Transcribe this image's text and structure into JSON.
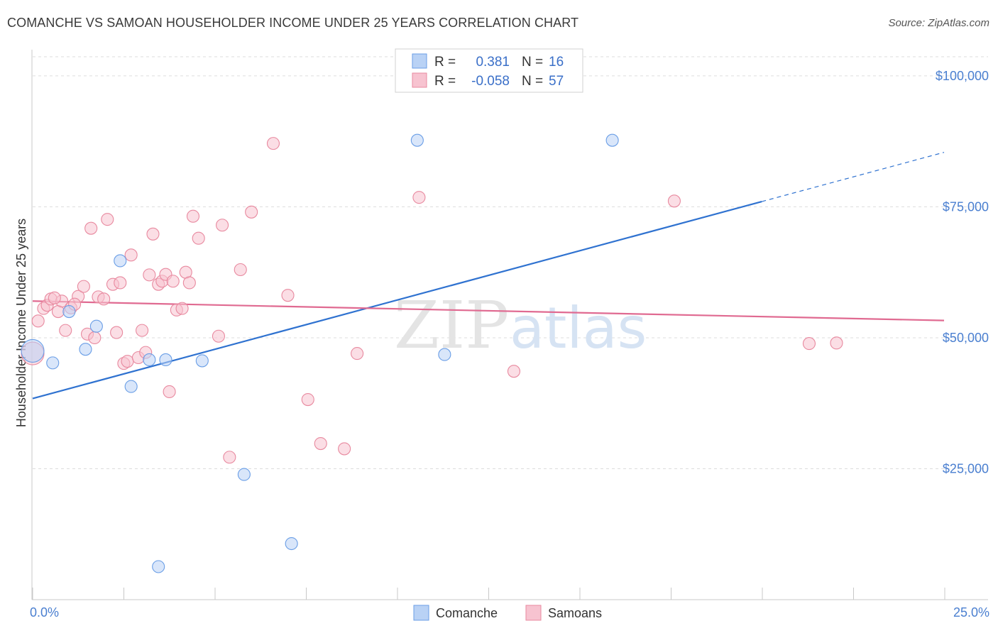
{
  "title": "COMANCHE VS SAMOAN HOUSEHOLDER INCOME UNDER 25 YEARS CORRELATION CHART",
  "source": "Source: ZipAtlas.com",
  "chart_data": {
    "type": "scatter",
    "xlabel": "",
    "ylabel": "Householder Income Under 25 years",
    "xlim": [
      0,
      25
    ],
    "ylim": [
      0,
      105000
    ],
    "x_tick_labels": [
      "0.0%",
      "25.0%"
    ],
    "y_ticks": [
      25000,
      50000,
      75000,
      100000
    ],
    "y_tick_labels": [
      "$25,000",
      "$50,000",
      "$75,000",
      "$100,000"
    ],
    "legend_stats": [
      {
        "r_label": "R =",
        "r_value": "0.381",
        "n_label": "N =",
        "n_value": "16"
      },
      {
        "r_label": "R =",
        "r_value": "-0.058",
        "n_label": "N =",
        "n_value": "57"
      }
    ],
    "series": [
      {
        "name": "Comanche",
        "color": "#6a9ee6",
        "fill": "#b9d2f5",
        "points": [
          {
            "x": 0.0,
            "y": 47500
          },
          {
            "x": 0.55,
            "y": 45200
          },
          {
            "x": 1.0,
            "y": 55000
          },
          {
            "x": 1.45,
            "y": 47800
          },
          {
            "x": 1.75,
            "y": 52200
          },
          {
            "x": 2.4,
            "y": 64700
          },
          {
            "x": 2.7,
            "y": 40700
          },
          {
            "x": 3.2,
            "y": 45800
          },
          {
            "x": 3.45,
            "y": 6300
          },
          {
            "x": 3.65,
            "y": 45800
          },
          {
            "x": 4.65,
            "y": 45600
          },
          {
            "x": 5.8,
            "y": 23900
          },
          {
            "x": 7.1,
            "y": 10700
          },
          {
            "x": 10.55,
            "y": 87700
          },
          {
            "x": 11.3,
            "y": 46800
          },
          {
            "x": 15.9,
            "y": 87700
          }
        ]
      },
      {
        "name": "Samoans",
        "color": "#e8899f",
        "fill": "#f7c3d0",
        "points": [
          {
            "x": 0.0,
            "y": 47000
          },
          {
            "x": 0.15,
            "y": 53200
          },
          {
            "x": 0.3,
            "y": 55600
          },
          {
            "x": 0.4,
            "y": 56200
          },
          {
            "x": 0.5,
            "y": 57400
          },
          {
            "x": 0.7,
            "y": 55000
          },
          {
            "x": 0.8,
            "y": 57000
          },
          {
            "x": 0.9,
            "y": 51400
          },
          {
            "x": 1.05,
            "y": 55700
          },
          {
            "x": 1.25,
            "y": 57900
          },
          {
            "x": 1.4,
            "y": 59800
          },
          {
            "x": 1.5,
            "y": 50700
          },
          {
            "x": 1.6,
            "y": 70900
          },
          {
            "x": 1.7,
            "y": 50000
          },
          {
            "x": 1.8,
            "y": 57800
          },
          {
            "x": 1.95,
            "y": 57400
          },
          {
            "x": 2.05,
            "y": 72600
          },
          {
            "x": 2.2,
            "y": 60200
          },
          {
            "x": 2.3,
            "y": 51000
          },
          {
            "x": 2.4,
            "y": 60500
          },
          {
            "x": 2.5,
            "y": 45100
          },
          {
            "x": 2.6,
            "y": 45500
          },
          {
            "x": 2.7,
            "y": 65800
          },
          {
            "x": 2.9,
            "y": 46200
          },
          {
            "x": 3.0,
            "y": 51400
          },
          {
            "x": 3.1,
            "y": 47200
          },
          {
            "x": 3.2,
            "y": 62000
          },
          {
            "x": 3.3,
            "y": 69800
          },
          {
            "x": 3.45,
            "y": 60200
          },
          {
            "x": 3.55,
            "y": 60800
          },
          {
            "x": 3.65,
            "y": 62100
          },
          {
            "x": 3.75,
            "y": 39700
          },
          {
            "x": 3.85,
            "y": 60800
          },
          {
            "x": 3.95,
            "y": 55300
          },
          {
            "x": 4.1,
            "y": 55600
          },
          {
            "x": 4.2,
            "y": 62500
          },
          {
            "x": 4.3,
            "y": 60500
          },
          {
            "x": 4.4,
            "y": 73200
          },
          {
            "x": 4.55,
            "y": 69000
          },
          {
            "x": 5.1,
            "y": 50300
          },
          {
            "x": 5.2,
            "y": 71500
          },
          {
            "x": 5.4,
            "y": 27200
          },
          {
            "x": 5.7,
            "y": 63000
          },
          {
            "x": 6.0,
            "y": 74000
          },
          {
            "x": 6.6,
            "y": 87100
          },
          {
            "x": 7.0,
            "y": 58100
          },
          {
            "x": 7.55,
            "y": 38200
          },
          {
            "x": 7.9,
            "y": 29800
          },
          {
            "x": 8.55,
            "y": 28800
          },
          {
            "x": 8.9,
            "y": 47000
          },
          {
            "x": 10.6,
            "y": 76800
          },
          {
            "x": 13.2,
            "y": 43600
          },
          {
            "x": 17.6,
            "y": 76100
          },
          {
            "x": 21.3,
            "y": 48900
          },
          {
            "x": 22.05,
            "y": 49000
          },
          {
            "x": 0.6,
            "y": 57600
          },
          {
            "x": 1.15,
            "y": 56400
          }
        ]
      }
    ],
    "trend_lines": [
      {
        "series": "Comanche",
        "x0": 0,
        "y0": 38400,
        "x1": 20,
        "y1": 76000,
        "dash_to_x": 25,
        "dash_to_y": 85400
      },
      {
        "series": "Samoans",
        "x0": 0,
        "y0": 57000,
        "x1": 25,
        "y1": 53300
      }
    ],
    "watermark": "ZIPatlas"
  }
}
